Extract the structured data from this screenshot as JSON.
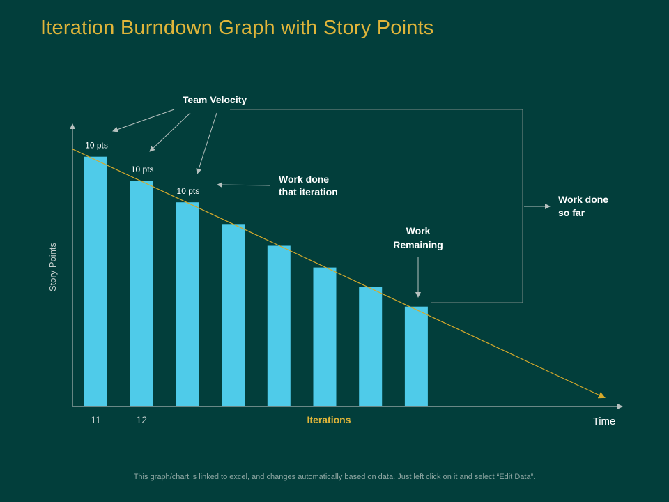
{
  "title": "Iteration Burndown Graph with Story Points",
  "footnote": "This graph/chart is linked to excel, and changes automatically based on data. Just left click on it and select “Edit Data”.",
  "colors": {
    "background": "#023e3b",
    "title": "#e0b53a",
    "bar": "#4fcbe9",
    "trend": "#d6a92b",
    "axis": "#a9b5b2",
    "text": "#ffffff",
    "annotation_line": "#9aa6a3"
  },
  "chart_data": {
    "type": "bar",
    "categories": [
      "11",
      "12",
      "",
      "",
      "",
      "",
      "",
      ""
    ],
    "values": [
      115,
      104,
      94,
      84,
      74,
      64,
      55,
      46
    ],
    "ylim": [
      0,
      130
    ],
    "xlabel": "Iterations",
    "ylabel": "Story Points",
    "time_label": "Time",
    "data_labels": [
      "10 pts",
      "10 pts",
      "10 pts",
      "",
      "",
      "",
      "",
      ""
    ],
    "trend_line": {
      "start": 118.5,
      "end": 4,
      "note": ""
    },
    "annotations": {
      "team_velocity": "Team Velocity",
      "work_done_iteration_1": "Work done",
      "work_done_iteration_2": "that iteration",
      "work_remaining_1": "Work",
      "work_remaining_2": "Remaining",
      "work_done_so_far_1": "Work done",
      "work_done_so_far_2": "so far"
    },
    "grid": false
  }
}
